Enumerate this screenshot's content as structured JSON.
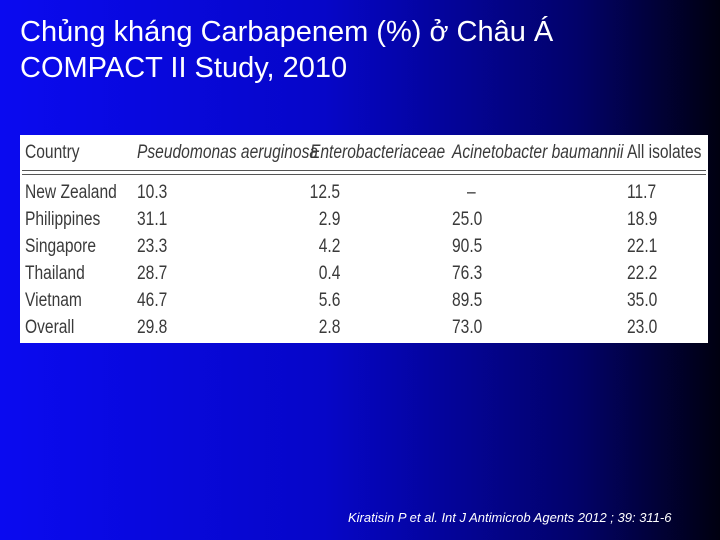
{
  "title": [
    "Chủng kháng Carbapenem (%) ở Châu Á",
    "COMPACT II Study, 2010"
  ],
  "table": {
    "header": [
      "Country",
      "Pseudomonas aeruginosa",
      "Enterobacteriaceae",
      "Acinetobacter baumannii",
      "All isolates"
    ],
    "rows": [
      [
        "New Zealand",
        "10.3",
        "12.5",
        "–",
        "11.7"
      ],
      [
        "Philippines",
        "31.1",
        "2.9",
        "25.0",
        "18.9"
      ],
      [
        "Singapore",
        "23.3",
        "4.2",
        "90.5",
        "22.1"
      ],
      [
        "Thailand",
        "28.7",
        "0.4",
        "76.3",
        "22.2"
      ],
      [
        "Vietnam",
        "46.7",
        "5.6",
        "89.5",
        "35.0"
      ],
      [
        "Overall",
        "29.8",
        "2.8",
        "73.0",
        "23.0"
      ]
    ]
  },
  "citation": "Kiratisin P et al. Int J Antimicrob Agents 2012 ; 39: 311-6"
}
